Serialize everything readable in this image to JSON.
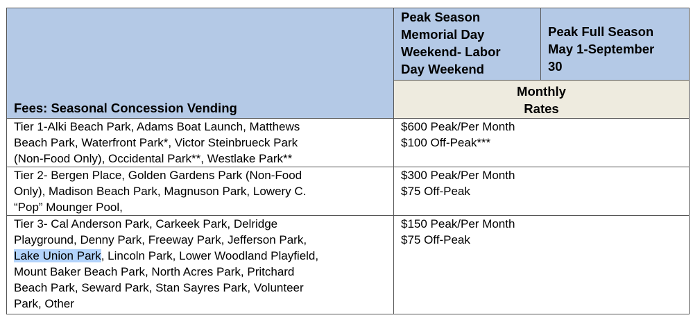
{
  "header": {
    "fees_title": "Fees:  Seasonal Concession Vending",
    "peak_season": [
      "Peak Season",
      "Memorial Day",
      "Weekend- Labor",
      "Day Weekend"
    ],
    "peak_full_season": [
      "Peak Full Season",
      "May 1-September",
      "30"
    ],
    "monthly_rates": [
      "Monthly",
      "Rates"
    ]
  },
  "rows": [
    {
      "parks": [
        "Tier 1-Alki Beach Park, Adams Boat Launch, Matthews",
        "Beach Park, Waterfront Park*, Victor Steinbrueck Park",
        "(Non-Food Only), Occidental Park**, Westlake Park**"
      ],
      "rates": [
        "$600 Peak/Per Month",
        "$100 Off-Peak***"
      ]
    },
    {
      "parks": [
        "Tier 2- Bergen Place, Golden Gardens Park (Non-Food",
        "Only), Madison Beach Park,  Magnuson Park, Lowery C.",
        "“Pop” Mounger Pool,"
      ],
      "rates": [
        "$300 Peak/Per Month",
        "$75 Off-Peak"
      ]
    },
    {
      "parks": [
        "Tier 3- Cal Anderson Park, Carkeek Park, Delridge",
        "Playground, Denny Park, Freeway Park, Jefferson Park,",
        "Lake Union Park",
        ", Lincoln Park, Lower Woodland Playfield,",
        "Mount Baker Beach Park, North Acres Park, Pritchard",
        "Beach Park, Seward Park, Stan Sayres Park, Volunteer",
        "Park,  Other"
      ],
      "rates": [
        "$150 Peak/Per Month",
        "$75 Off-Peak"
      ]
    }
  ],
  "selection": {
    "selected_text": "Lake Union Park",
    "highlight_color": "#b3d4fc"
  }
}
